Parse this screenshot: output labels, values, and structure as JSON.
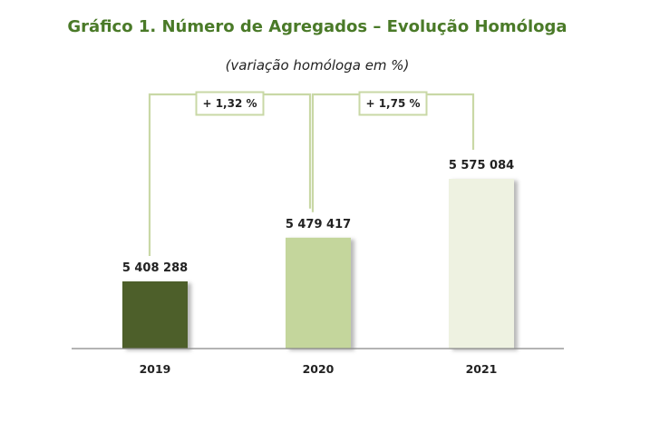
{
  "chart_data": {
    "type": "bar",
    "title": "Gráfico 1. Número de Agregados – Evolução Homóloga",
    "subtitle": "(variação homóloga em %)",
    "categories": [
      "2019",
      "2020",
      "2021"
    ],
    "values": [
      5408288,
      5479417,
      5575084
    ],
    "value_labels": [
      "5 408 288",
      "5 479 417",
      "5 575 084"
    ],
    "colors": [
      "#4e5e2a",
      "#c4d69c",
      "#eef2e1"
    ],
    "annotations": [
      {
        "from": "2019",
        "to": "2020",
        "label": "+ 1,32 %"
      },
      {
        "from": "2020",
        "to": "2021",
        "label": "+ 1,75 %"
      }
    ],
    "xlabel": "",
    "ylabel": "",
    "grid": false,
    "legend": "none"
  }
}
